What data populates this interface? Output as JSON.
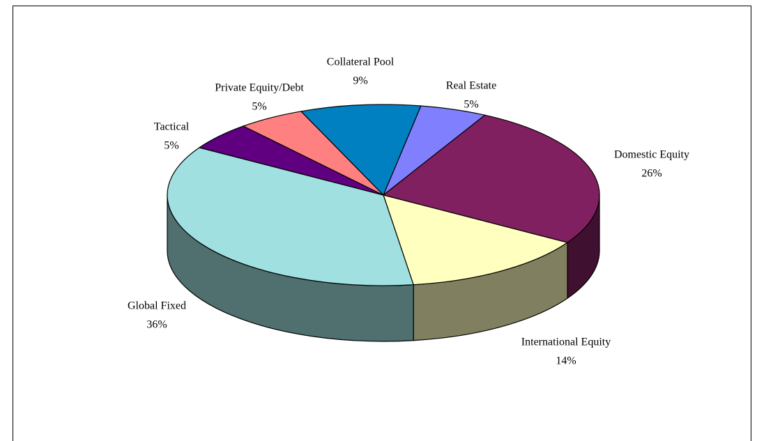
{
  "chart_data": {
    "type": "pie3d",
    "categories": [
      "Real Estate",
      "Domestic Equity",
      "International Equity",
      "Global Fixed",
      "Tactical",
      "Private Equity/Debt",
      "Collateral Pool"
    ],
    "values": [
      5,
      26,
      14,
      36,
      5,
      5,
      9
    ],
    "value_labels": [
      "5%",
      "26%",
      "14%",
      "36%",
      "5%",
      "5%",
      "9%"
    ],
    "colors": [
      "#8080ff",
      "#802060",
      "#ffffc0",
      "#a0e0e0",
      "#600080",
      "#ff8080",
      "#0080c0"
    ]
  }
}
